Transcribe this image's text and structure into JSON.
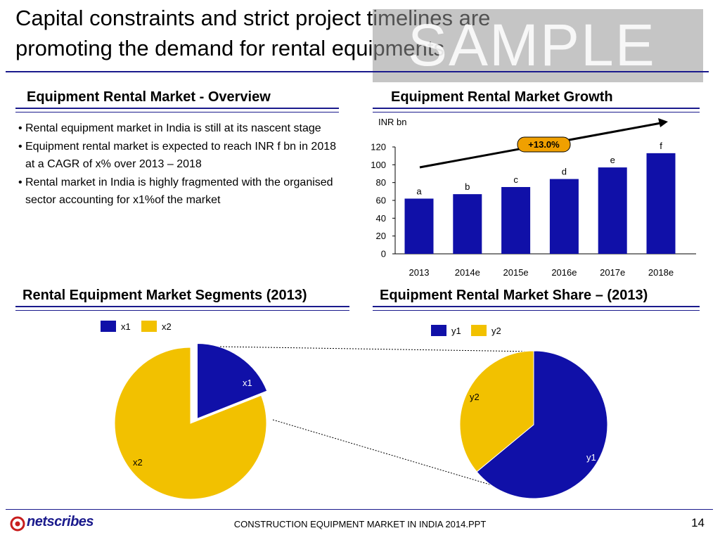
{
  "slide": {
    "title_line1": "Capital constraints and strict project timelines are",
    "title_line2": "promoting the demand for rental equipments",
    "watermark": "SAMPLE"
  },
  "overview": {
    "heading": "Equipment Rental Market - Overview",
    "bullets": [
      "Rental equipment market in India is still at its nascent stage",
      "Equipment rental market is expected to reach INR f bn in 2018 at a CAGR of x% over 2013 – 2018",
      "Rental market in India is highly fragmented with the organised sector accounting for x1%of the market"
    ]
  },
  "growth_heading": "Equipment Rental Market Growth",
  "segments_heading": "Rental Equipment Market Segments (2013)",
  "share_heading": "Equipment Rental Market Share – (2013)",
  "footer": {
    "logo": "netscribes",
    "text": "CONSTRUCTION EQUIPMENT MARKET IN INDIA 2014.PPT",
    "page": "14"
  },
  "colors": {
    "navy": "#1a1a8c",
    "bar": "#1010a8",
    "yellow": "#f2c100",
    "orange": "#f0a000"
  },
  "chart_data": [
    {
      "type": "bar",
      "unit_label": "INR bn",
      "categories": [
        "2013",
        "2014e",
        "2015e",
        "2016e",
        "2017e",
        "2018e"
      ],
      "values": [
        62,
        67,
        75,
        84,
        97,
        113
      ],
      "data_labels": [
        "a",
        "b",
        "c",
        "d",
        "e",
        "f"
      ],
      "ylim": [
        0,
        120
      ],
      "yticks": [
        0,
        20,
        40,
        60,
        80,
        100,
        120
      ],
      "annotation": "+13.0%",
      "grid": false
    },
    {
      "type": "pie",
      "legend": [
        "x1",
        "x2"
      ],
      "slices": [
        {
          "label": "x1",
          "value": 19,
          "exploded": true
        },
        {
          "label": "x2",
          "value": 81
        }
      ]
    },
    {
      "type": "pie",
      "legend": [
        "y1",
        "y2"
      ],
      "slices": [
        {
          "label": "y1",
          "value": 64
        },
        {
          "label": "y2",
          "value": 36
        }
      ]
    }
  ]
}
